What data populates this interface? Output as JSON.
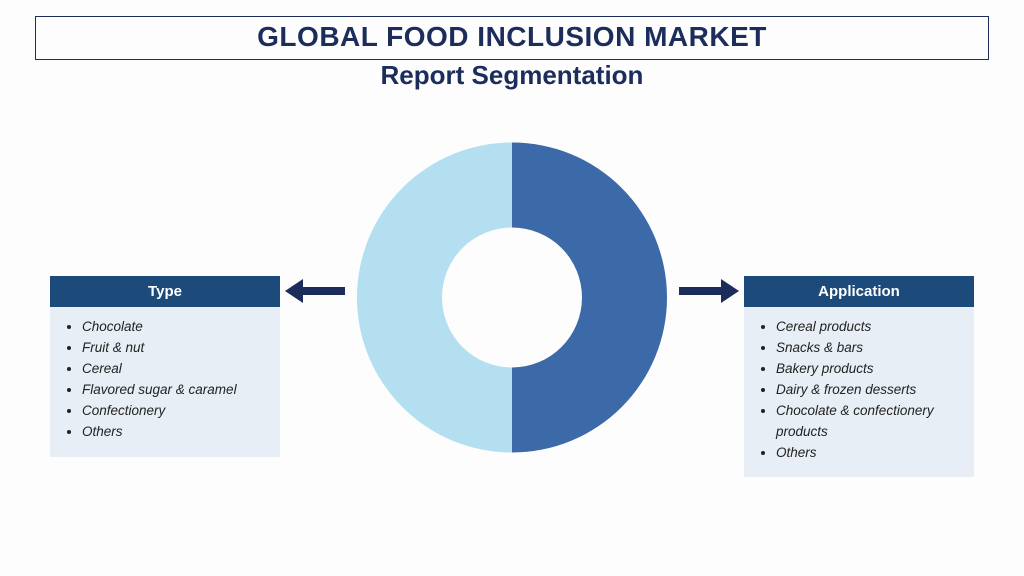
{
  "title": "GLOBAL FOOD INCLUSION MARKET",
  "subtitle": "Report Segmentation",
  "donut": {
    "outer_radius": 155,
    "inner_radius": 70,
    "left_color": "#b3dff1",
    "right_color": "#3c69a7",
    "background": "#ffffff"
  },
  "colors": {
    "brand_dark": "#1c2c5b",
    "panel_header_bg": "#1c4a7a",
    "panel_body_bg": "#e8eef6",
    "text": "#222222"
  },
  "panels": {
    "left": {
      "header": "Type",
      "items": [
        "Chocolate",
        "Fruit & nut",
        "Cereal",
        "Flavored sugar & caramel",
        "Confectionery",
        "Others"
      ]
    },
    "right": {
      "header": "Application",
      "items": [
        "Cereal products",
        "Snacks & bars",
        "Bakery products",
        "Dairy & frozen desserts",
        "Chocolate & confectionery products",
        "Others"
      ]
    }
  }
}
